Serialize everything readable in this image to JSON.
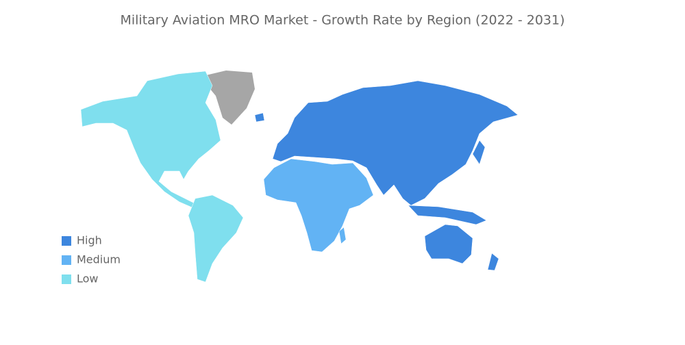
{
  "title": "Military Aviation MRO Market - Growth Rate by Region (2022 - 2031)",
  "legend": [
    {
      "label": "High",
      "color": "#3d86de"
    },
    {
      "label": "Medium",
      "color": "#62b3f4"
    },
    {
      "label": "Low",
      "color": "#7fdfee"
    }
  ]
}
